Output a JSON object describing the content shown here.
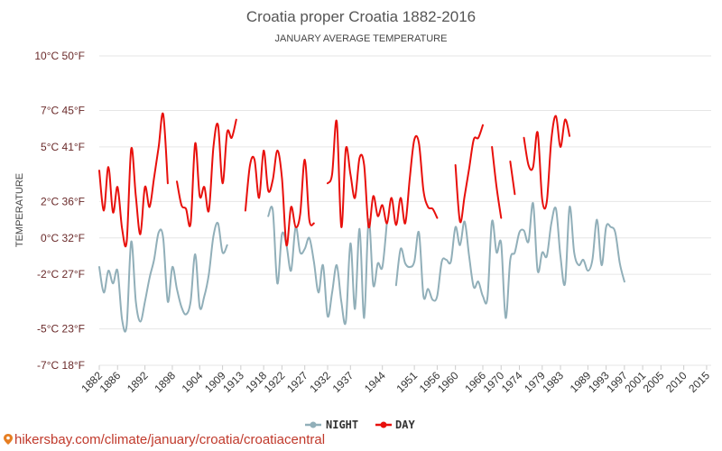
{
  "chart_data": {
    "type": "line",
    "title": "Croatia proper Croatia 1882-2016",
    "subtitle": "JANUARY AVERAGE TEMPERATURE",
    "ylabel": "TEMPERATURE",
    "ylim": [
      -7,
      10
    ],
    "yticks": [
      {
        "value": 10,
        "label": "10°C 50°F"
      },
      {
        "value": 7,
        "label": "7°C 45°F"
      },
      {
        "value": 5,
        "label": "5°C 41°F"
      },
      {
        "value": 2,
        "label": "2°C 36°F"
      },
      {
        "value": 0,
        "label": "0°C 32°F"
      },
      {
        "value": -2,
        "label": "-2°C 27°F"
      },
      {
        "value": -5,
        "label": "-5°C 23°F"
      },
      {
        "value": -7,
        "label": "-7°C 18°F"
      }
    ],
    "xlim": [
      1882,
      2016
    ],
    "xticks": [
      1882,
      1886,
      1892,
      1898,
      1904,
      1909,
      1913,
      1918,
      1922,
      1927,
      1932,
      1937,
      1944,
      1951,
      1956,
      1960,
      1966,
      1970,
      1974,
      1979,
      1983,
      1989,
      1993,
      1997,
      2001,
      2005,
      2010,
      2015
    ],
    "legend_position": "bottom",
    "colors": {
      "night": "#91afb9",
      "day": "#e8100c"
    },
    "series": [
      {
        "name": "NIGHT",
        "color": "#91afb9",
        "values": [
          [
            1882,
            -1.6
          ],
          [
            1883,
            -3.0
          ],
          [
            1884,
            -1.8
          ],
          [
            1885,
            -2.5
          ],
          [
            1886,
            -1.8
          ],
          [
            1887,
            -4.5
          ],
          [
            1888,
            -4.8
          ],
          [
            1889,
            -0.2
          ],
          [
            1890,
            -3.5
          ],
          [
            1891,
            -4.6
          ],
          [
            1892,
            -3.5
          ],
          [
            1893,
            -2.2
          ],
          [
            1894,
            -1.2
          ],
          [
            1895,
            0.3
          ],
          [
            1896,
            0.0
          ],
          [
            1897,
            -3.5
          ],
          [
            1898,
            -1.6
          ],
          [
            1899,
            -2.8
          ],
          [
            1900,
            -3.8
          ],
          [
            1901,
            -4.2
          ],
          [
            1902,
            -3.5
          ],
          [
            1903,
            -0.9
          ],
          [
            1904,
            -3.8
          ],
          [
            1905,
            -3.2
          ],
          [
            1906,
            -2.0
          ],
          [
            1907,
            0.1
          ],
          [
            1908,
            0.8
          ],
          [
            1909,
            -0.8
          ],
          [
            1910,
            -0.4
          ],
          null,
          [
            1919,
            1.2
          ],
          [
            1920,
            1.5
          ],
          [
            1921,
            -2.5
          ],
          [
            1922,
            0.2
          ],
          [
            1923,
            -0.4
          ],
          [
            1924,
            -1.8
          ],
          [
            1925,
            0.6
          ],
          [
            1926,
            -0.8
          ],
          [
            1927,
            -0.6
          ],
          [
            1928,
            0.0
          ],
          [
            1929,
            -1.3
          ],
          [
            1930,
            -3.0
          ],
          [
            1931,
            -1.5
          ],
          [
            1932,
            -4.3
          ],
          [
            1933,
            -3.0
          ],
          [
            1934,
            -1.5
          ],
          [
            1935,
            -3.5
          ],
          [
            1936,
            -4.6
          ],
          [
            1937,
            -0.3
          ],
          [
            1938,
            -3.9
          ],
          [
            1939,
            0.5
          ],
          [
            1940,
            -4.4
          ],
          [
            1941,
            1.0
          ],
          [
            1942,
            -2.6
          ],
          [
            1943,
            -1.4
          ],
          [
            1944,
            -1.6
          ],
          [
            1945,
            0.9
          ],
          null,
          [
            1947,
            -2.6
          ],
          [
            1948,
            -0.6
          ],
          [
            1949,
            -1.4
          ],
          [
            1950,
            -1.6
          ],
          [
            1951,
            -1.3
          ],
          [
            1952,
            0.3
          ],
          [
            1953,
            -3.2
          ],
          [
            1954,
            -2.8
          ],
          [
            1955,
            -3.4
          ],
          [
            1956,
            -3.2
          ],
          [
            1957,
            -1.3
          ],
          [
            1958,
            -1.2
          ],
          [
            1959,
            -1.3
          ],
          [
            1960,
            0.6
          ],
          [
            1961,
            -0.4
          ],
          [
            1962,
            0.9
          ],
          [
            1963,
            -1.0
          ],
          [
            1964,
            -2.7
          ],
          [
            1965,
            -2.4
          ],
          [
            1966,
            -3.2
          ],
          [
            1967,
            -3.3
          ],
          [
            1968,
            0.9
          ],
          [
            1969,
            -0.8
          ],
          [
            1970,
            -0.3
          ],
          [
            1971,
            -4.4
          ],
          [
            1972,
            -1.2
          ],
          [
            1973,
            -0.8
          ],
          [
            1974,
            0.3
          ],
          [
            1975,
            0.4
          ],
          [
            1976,
            -0.2
          ],
          [
            1977,
            1.9
          ],
          [
            1978,
            -1.8
          ],
          [
            1979,
            -0.8
          ],
          [
            1980,
            -1.0
          ],
          [
            1981,
            0.8
          ],
          [
            1982,
            1.6
          ],
          [
            1983,
            -1.0
          ],
          [
            1984,
            -2.5
          ],
          [
            1985,
            1.7
          ],
          [
            1986,
            -0.8
          ],
          [
            1987,
            -1.5
          ],
          [
            1988,
            -1.2
          ],
          [
            1989,
            -1.8
          ],
          [
            1990,
            -1.2
          ],
          [
            1991,
            1.0
          ],
          [
            1992,
            -1.5
          ],
          [
            1993,
            0.6
          ],
          [
            1994,
            0.6
          ],
          [
            1995,
            0.3
          ],
          [
            1996,
            -1.4
          ],
          [
            1997,
            -2.4
          ]
        ]
      },
      {
        "name": "DAY",
        "color": "#e8100c",
        "values": [
          [
            1882,
            3.7
          ],
          [
            1883,
            1.5
          ],
          [
            1884,
            3.9
          ],
          [
            1885,
            1.4
          ],
          [
            1886,
            2.8
          ],
          [
            1887,
            0.5
          ],
          [
            1888,
            -0.2
          ],
          [
            1889,
            4.9
          ],
          [
            1890,
            2.3
          ],
          [
            1891,
            0.2
          ],
          [
            1892,
            2.8
          ],
          [
            1893,
            1.7
          ],
          [
            1894,
            3.3
          ],
          [
            1895,
            5.0
          ],
          [
            1896,
            6.8
          ],
          [
            1897,
            3.0
          ],
          null,
          [
            1899,
            3.1
          ],
          [
            1900,
            1.8
          ],
          [
            1901,
            1.6
          ],
          [
            1902,
            0.8
          ],
          [
            1903,
            5.2
          ],
          [
            1904,
            2.3
          ],
          [
            1905,
            2.8
          ],
          [
            1906,
            1.5
          ],
          [
            1907,
            5.0
          ],
          [
            1908,
            6.2
          ],
          [
            1909,
            3.0
          ],
          [
            1910,
            5.8
          ],
          [
            1911,
            5.5
          ],
          [
            1912,
            6.5
          ],
          null,
          [
            1914,
            1.5
          ],
          [
            1915,
            4.0
          ],
          [
            1916,
            4.3
          ],
          [
            1917,
            2.2
          ],
          [
            1918,
            4.8
          ],
          [
            1919,
            2.6
          ],
          [
            1920,
            3.2
          ],
          [
            1921,
            4.8
          ],
          [
            1922,
            3.3
          ],
          [
            1923,
            -0.4
          ],
          [
            1924,
            1.7
          ],
          [
            1925,
            0.6
          ],
          [
            1926,
            1.3
          ],
          [
            1927,
            4.3
          ],
          [
            1928,
            1.0
          ],
          [
            1929,
            0.8
          ],
          null,
          [
            1932,
            3.0
          ],
          [
            1933,
            3.5
          ],
          [
            1934,
            6.4
          ],
          [
            1935,
            0.6
          ],
          [
            1936,
            4.9
          ],
          [
            1937,
            3.5
          ],
          [
            1938,
            2.2
          ],
          [
            1939,
            4.4
          ],
          [
            1940,
            4.0
          ],
          [
            1941,
            0.6
          ],
          [
            1942,
            2.3
          ],
          [
            1943,
            1.2
          ],
          [
            1944,
            1.8
          ],
          [
            1945,
            0.8
          ],
          [
            1946,
            2.2
          ],
          [
            1947,
            0.7
          ],
          [
            1948,
            2.2
          ],
          [
            1949,
            0.8
          ],
          [
            1950,
            3.3
          ],
          [
            1951,
            5.4
          ],
          [
            1952,
            5.2
          ],
          [
            1953,
            2.6
          ],
          [
            1954,
            1.7
          ],
          [
            1955,
            1.6
          ],
          [
            1956,
            1.1
          ],
          null,
          [
            1960,
            4.0
          ],
          [
            1961,
            0.9
          ],
          [
            1962,
            2.3
          ],
          [
            1963,
            3.8
          ],
          [
            1964,
            5.4
          ],
          [
            1965,
            5.5
          ],
          [
            1966,
            6.2
          ],
          null,
          [
            1968,
            5.0
          ],
          [
            1969,
            2.8
          ],
          [
            1970,
            1.1
          ],
          null,
          [
            1972,
            4.2
          ],
          [
            1973,
            2.4
          ],
          null,
          [
            1975,
            5.5
          ],
          [
            1976,
            4.0
          ],
          [
            1977,
            3.9
          ],
          [
            1978,
            5.8
          ],
          [
            1979,
            2.1
          ],
          [
            1980,
            2.0
          ],
          [
            1981,
            5.4
          ],
          [
            1982,
            6.7
          ],
          [
            1983,
            5.0
          ],
          [
            1984,
            6.5
          ],
          [
            1985,
            5.6
          ]
        ]
      }
    ]
  },
  "footer": {
    "text": "hikersbay.com/climate/january/croatia/croatiacentral"
  }
}
